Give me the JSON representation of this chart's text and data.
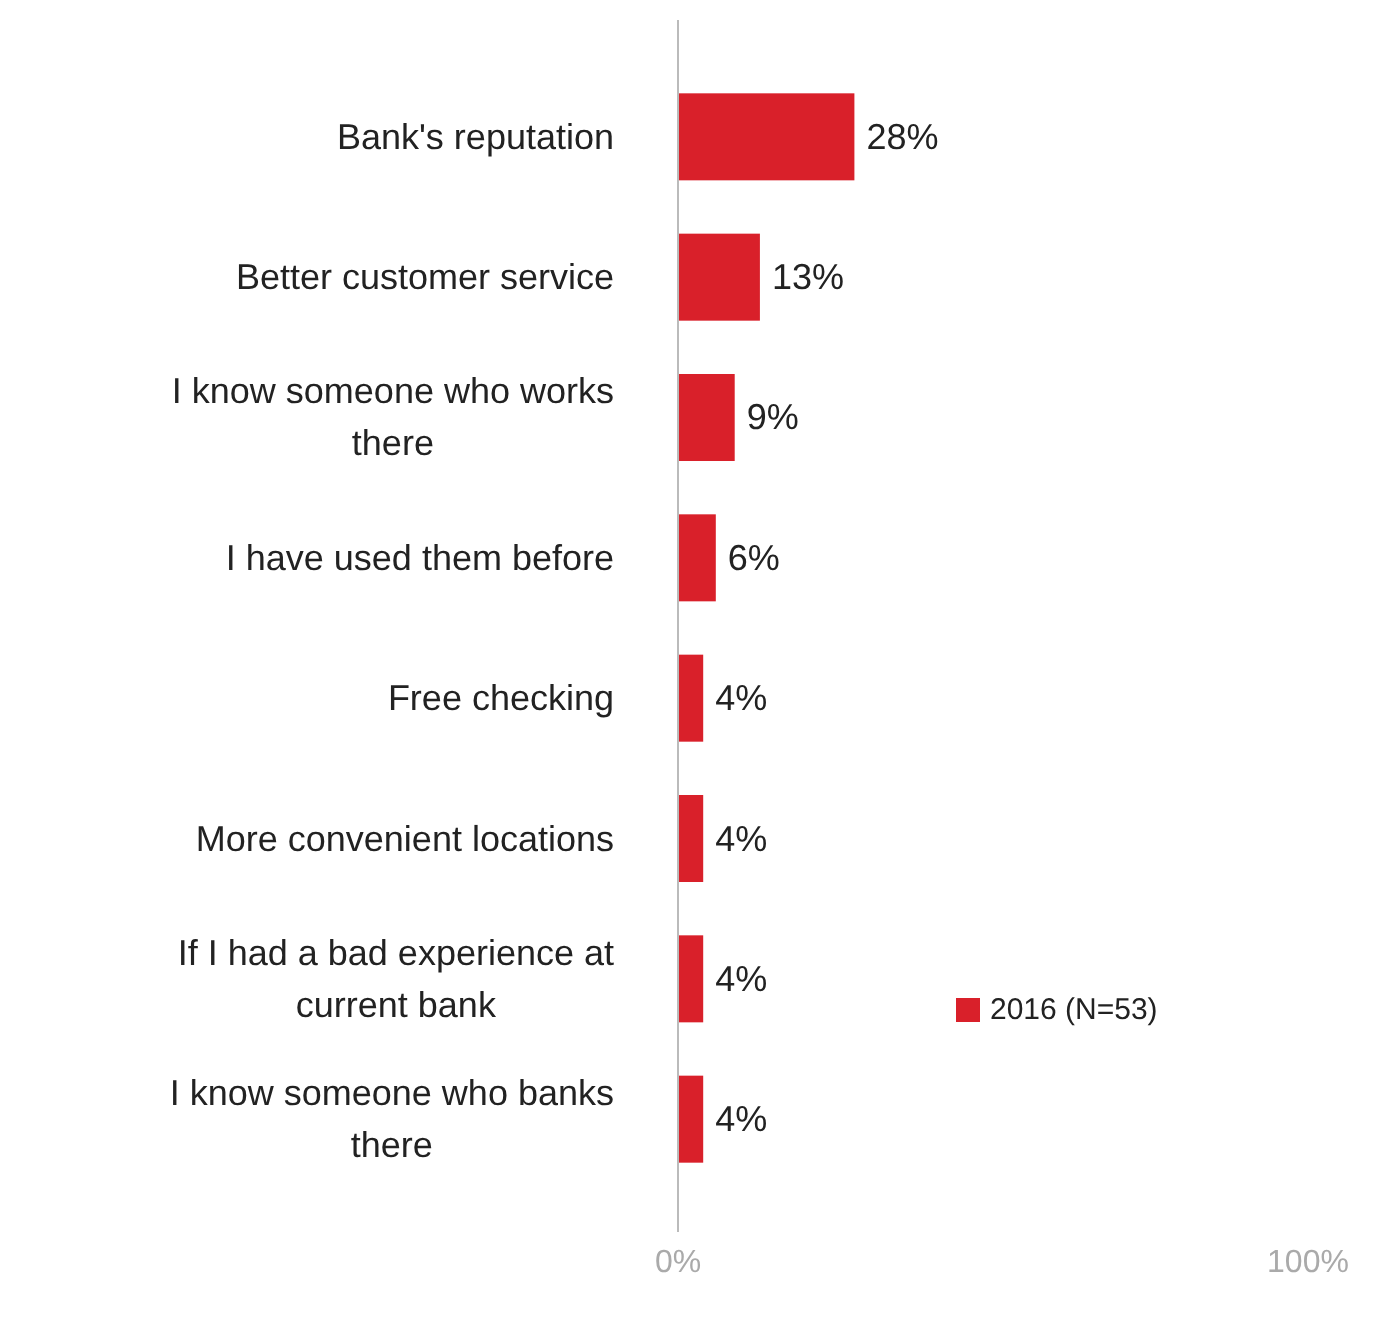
{
  "chart_data": {
    "type": "bar",
    "orientation": "horizontal",
    "categories": [
      "Bank's reputation",
      "Better customer service",
      "I know someone who works there",
      "I have used them before",
      "Free checking",
      "More convenient locations",
      "If I had a bad experience at current bank",
      "I know someone who banks there"
    ],
    "series": [
      {
        "name": "2016 (N=53)",
        "color": "#d9202a",
        "values": [
          28,
          13,
          9,
          6,
          4,
          4,
          4,
          4
        ],
        "value_labels": [
          "28%",
          "13%",
          "9%",
          "6%",
          "4%",
          "4%",
          "4%",
          "4%"
        ]
      }
    ],
    "xlim": [
      0,
      100
    ],
    "xticks": [
      {
        "value": 0,
        "label": "0%"
      },
      {
        "value": 100,
        "label": "100%"
      }
    ],
    "legend": "right",
    "grid": false
  }
}
